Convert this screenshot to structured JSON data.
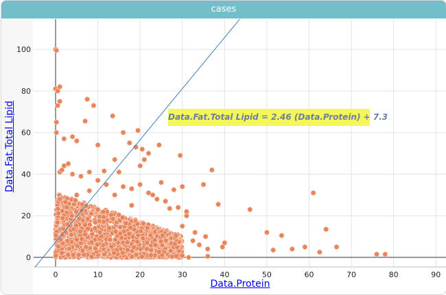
{
  "header": {
    "title": "cases"
  },
  "chart_data": {
    "type": "scatter",
    "title": "cases",
    "xlabel": "Data.Protein",
    "ylabel": "Data.Fat.Total Lipid",
    "xlim": [
      -5.2,
      92.4
    ],
    "ylim": [
      -4.6,
      114.5
    ],
    "xticks": [
      "0",
      "10",
      "20",
      "30",
      "40",
      "50",
      "60",
      "70",
      "80",
      "90"
    ],
    "yticks": [
      "0",
      "20",
      "40",
      "60",
      "80",
      "100"
    ],
    "grid": true,
    "point_color": "#e8845a",
    "line_color": "#3f7fbf",
    "regression": {
      "slope": 2.46,
      "intercept": 7.3,
      "label": "Data.Fat.Total Lipid = 2.46 (Data.Protein) + 7.3"
    },
    "points": [
      [
        0,
        100
      ],
      [
        0.2,
        99.5
      ],
      [
        1,
        82
      ],
      [
        0,
        81
      ],
      [
        0.5,
        80
      ],
      [
        1,
        75
      ],
      [
        0.5,
        73
      ],
      [
        7.5,
        76
      ],
      [
        9,
        73
      ],
      [
        13.5,
        68
      ],
      [
        7,
        65.5
      ],
      [
        0.2,
        65
      ],
      [
        0.2,
        60
      ],
      [
        19.5,
        61
      ],
      [
        16,
        60
      ],
      [
        4,
        58
      ],
      [
        2,
        57
      ],
      [
        5,
        56
      ],
      [
        10,
        54
      ],
      [
        17.5,
        55
      ],
      [
        19,
        53
      ],
      [
        20.5,
        52
      ],
      [
        24.5,
        54
      ],
      [
        22,
        50
      ],
      [
        29.5,
        49
      ],
      [
        14,
        47
      ],
      [
        21,
        47
      ],
      [
        20,
        44
      ],
      [
        37,
        42
      ],
      [
        15,
        41
      ],
      [
        11.5,
        41.5
      ],
      [
        8,
        41
      ],
      [
        1,
        41
      ],
      [
        35,
        35
      ],
      [
        38.5,
        25.5
      ],
      [
        46,
        23
      ],
      [
        61,
        31
      ],
      [
        50,
        12
      ],
      [
        53.5,
        10.5
      ],
      [
        64,
        13.5
      ],
      [
        51.5,
        3.5
      ],
      [
        56,
        4
      ],
      [
        59,
        5
      ],
      [
        62.5,
        2.5
      ],
      [
        66.5,
        5
      ],
      [
        76,
        1.5
      ],
      [
        78,
        1.5
      ],
      [
        40,
        7
      ],
      [
        39.5,
        5
      ],
      [
        35.5,
        10
      ],
      [
        36,
        4
      ],
      [
        36,
        0.5
      ],
      [
        31.5,
        0
      ],
      [
        32.5,
        8
      ],
      [
        34,
        6
      ],
      [
        33,
        12
      ],
      [
        30,
        15
      ],
      [
        31,
        20
      ],
      [
        31,
        22
      ],
      [
        27,
        23.5
      ],
      [
        29,
        24
      ],
      [
        26,
        27
      ],
      [
        24,
        28
      ],
      [
        23,
        30
      ],
      [
        25,
        36
      ],
      [
        30,
        34
      ],
      [
        28,
        32.5
      ],
      [
        3,
        45
      ],
      [
        2,
        44
      ],
      [
        1.5,
        42
      ],
      [
        4,
        40
      ],
      [
        6,
        39
      ],
      [
        10,
        37
      ],
      [
        12,
        35
      ],
      [
        16,
        34
      ],
      [
        18,
        33
      ],
      [
        20,
        35
      ],
      [
        22,
        31
      ],
      [
        1,
        28
      ],
      [
        5,
        30
      ],
      [
        8,
        32
      ],
      [
        14,
        30
      ],
      [
        18,
        25
      ]
    ],
    "dense_cluster": {
      "x_range": [
        0,
        30
      ],
      "y_range": [
        0,
        28
      ],
      "count": 1400
    }
  }
}
